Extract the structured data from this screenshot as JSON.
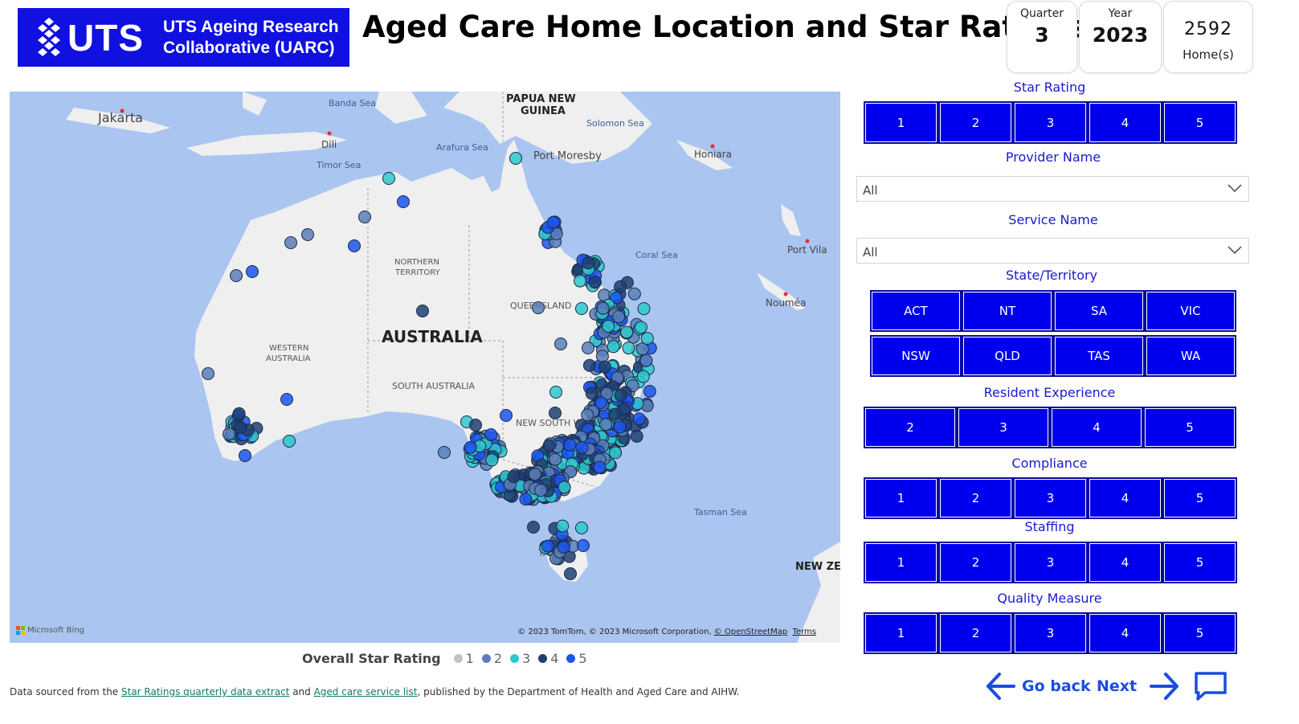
{
  "logo": {
    "mark_text": "UTS",
    "subtitle_line1": "UTS Ageing Research",
    "subtitle_line2": "Collaborative (UARC)",
    "color": "#1010e0"
  },
  "header": {
    "title": "Aged Care Home Location and Star Ratings"
  },
  "kpis": {
    "quarter": {
      "label": "Quarter",
      "value": "3"
    },
    "year": {
      "label": "Year",
      "value": "2023"
    },
    "homes": {
      "value": "2592",
      "label": "Home(s)"
    }
  },
  "map": {
    "labels": {
      "jakarta": "Jakarta",
      "banda_sea": "Banda Sea",
      "dili": "Dili",
      "timor_sea": "Timor Sea",
      "arafura_sea": "Arafura Sea",
      "png1": "PAPUA NEW",
      "png2": "GUINEA",
      "port_moresby": "Port Moresby",
      "solomon_sea": "Solomon Sea",
      "honiara": "Honiara",
      "coral_sea": "Coral Sea",
      "port_vila": "Port Vila",
      "noumea": "Nouméa",
      "nt1": "NORTHERN",
      "nt2": "TERRITORY",
      "qld": "QUEENSLAND",
      "australia": "AUSTRALIA",
      "wa1": "WESTERN",
      "wa2": "AUSTRALIA",
      "sa": "SOUTH AUSTRALIA",
      "nsw": "NEW SOUTH W",
      "tasman_sea": "Tasman Sea",
      "tas": "TA",
      "nz": "NEW ZEA"
    },
    "attribution": "Microsoft Bing",
    "copyright_prefix": "© 2023 TomTom, © 2023 Microsoft Corporation, ",
    "osm": "© OpenStreetMap",
    "terms": "Terms",
    "colors": {
      "land": "#efefef",
      "sea": "#a9c5f0",
      "border": "#9a9a9a"
    }
  },
  "legend": {
    "title": "Overall Star Rating",
    "items": [
      {
        "label": "1",
        "color": "#bfc3c9"
      },
      {
        "label": "2",
        "color": "#5b7fb8"
      },
      {
        "label": "3",
        "color": "#2ec8cc"
      },
      {
        "label": "4",
        "color": "#1f3f73"
      },
      {
        "label": "5",
        "color": "#1b55f0"
      }
    ]
  },
  "footer": {
    "prefix": "Data sourced from the ",
    "link1": "Star Ratings quarterly data extract",
    "mid": " and ",
    "link2": "Aged care service list",
    "suffix": ", published by the Department of Health and Aged Care and AIHW."
  },
  "filters": {
    "star_rating": {
      "label": "Star Rating",
      "options": [
        "1",
        "2",
        "3",
        "4",
        "5"
      ]
    },
    "provider_name": {
      "label": "Provider Name",
      "value": "All"
    },
    "service_name": {
      "label": "Service Name",
      "value": "All"
    },
    "state": {
      "label": "State/Territory",
      "row1": [
        "ACT",
        "NT",
        "SA",
        "VIC"
      ],
      "row2": [
        "NSW",
        "QLD",
        "TAS",
        "WA"
      ]
    },
    "resident_experience": {
      "label": "Resident Experience",
      "options": [
        "2",
        "3",
        "4",
        "5"
      ]
    },
    "compliance": {
      "label": "Compliance",
      "options": [
        "1",
        "2",
        "3",
        "4",
        "5"
      ]
    },
    "staffing": {
      "label": "Staffing",
      "options": [
        "1",
        "2",
        "3",
        "4",
        "5"
      ]
    },
    "quality_measure": {
      "label": "Quality Measure",
      "options": [
        "1",
        "2",
        "3",
        "4",
        "5"
      ]
    },
    "button_color": "#0000ee"
  },
  "nav": {
    "back": "Go back",
    "next": "Next"
  }
}
